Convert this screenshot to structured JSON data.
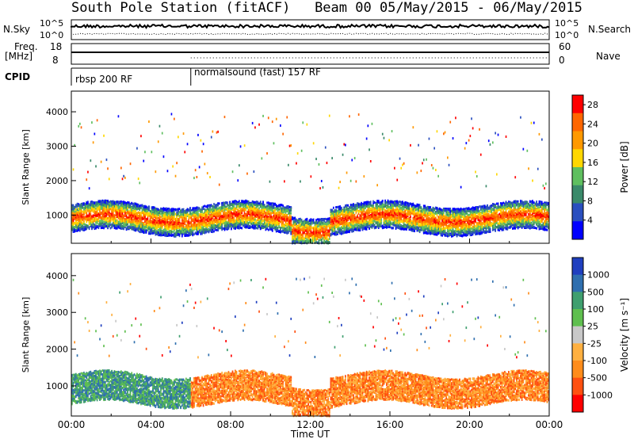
{
  "header": {
    "station": "South Pole Station (fitACF)",
    "beam_dates": "Beam 00  05/May/2015 - 06/May/2015"
  },
  "aux_panels": {
    "nsky_label": "N.Sky",
    "nsearch_label": "N.Search",
    "nsky_ticks": [
      "10^5",
      "10^0"
    ],
    "nsearch_ticks": [
      "10^5",
      "10^0"
    ],
    "freq_label_1": "Freq.",
    "freq_label_2": "[MHz]",
    "freq_ticks": [
      "18",
      "8"
    ],
    "nave_label": "Nave",
    "nave_ticks": [
      "60",
      "0"
    ],
    "cpid_label": "CPID",
    "cpid_segments": [
      "rbsp 200 RF",
      "normalsound (fast) 157 RF"
    ],
    "cpid_change_hour": 6.0
  },
  "chart_data": [
    {
      "type": "heatmap",
      "name": "power",
      "ylabel": "Slant Range [km]",
      "xlim": [
        0,
        24
      ],
      "ylim": [
        180,
        4600
      ],
      "yticks": [
        "1000",
        "2000",
        "3000",
        "4000"
      ],
      "colorbar_label": "Power [dB]",
      "colorbar_ticks": [
        "4",
        "8",
        "12",
        "16",
        "20",
        "24",
        "28"
      ],
      "colorbar_range": [
        0,
        30
      ],
      "colors": [
        "#0000ff",
        "#2a4fbf",
        "#3a8a6a",
        "#5fbf5f",
        "#ffd700",
        "#ff9900",
        "#ff6600",
        "#ff0000"
      ]
    },
    {
      "type": "heatmap",
      "name": "velocity",
      "ylabel": "Slant Range [km]",
      "xlim": [
        0,
        24
      ],
      "ylim": [
        180,
        4600
      ],
      "yticks": [
        "1000",
        "2000",
        "3000",
        "4000"
      ],
      "colorbar_label": "Velocity [m s⁻¹]",
      "colorbar_ticks": [
        "1000",
        "500",
        "100",
        "25",
        "-25",
        "-100",
        "-500",
        "-1000"
      ],
      "colors": [
        "#1f3fbf",
        "#2f6faf",
        "#3f9f6f",
        "#5fbf4f",
        "#c8c8c8",
        "#ffb040",
        "#ff8c1a",
        "#ff5010",
        "#ff0000"
      ],
      "xlabel": "Time UT",
      "xticks": [
        "00:00",
        "04:00",
        "08:00",
        "12:00",
        "16:00",
        "20:00",
        "00:00"
      ]
    }
  ]
}
